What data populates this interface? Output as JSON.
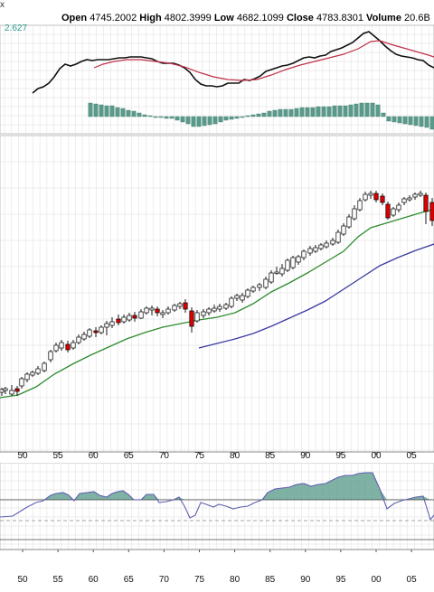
{
  "header": {
    "corner_mark": "x",
    "open_label": "Open",
    "open_value": "4745.2002",
    "high_label": "High",
    "high_value": "4802.3999",
    "low_label": "Low",
    "low_value": "4682.1099",
    "close_label": "Close",
    "close_value": "4783.8301",
    "volume_label": "Volume",
    "volume_value": "20.6B"
  },
  "macd_panel": {
    "value_label": "2.627"
  },
  "x_axis": {
    "labels": [
      "50",
      "55",
      "60",
      "65",
      "70",
      "75",
      "80",
      "85",
      "90",
      "95",
      "00",
      "05"
    ]
  },
  "colors": {
    "up_candle": "#ffffff",
    "down_candle": "#e00000",
    "candle_outline": "#000000",
    "ma_short": "#2e8b2e",
    "ma_long": "#3a3aa0",
    "macd_line": "#111111",
    "signal_line": "#c0304a",
    "histogram": "#5a9a8a",
    "rsi_fill": "#5f9e8f",
    "rsi_line": "#6060b0",
    "grid": "#dddddd"
  }
}
